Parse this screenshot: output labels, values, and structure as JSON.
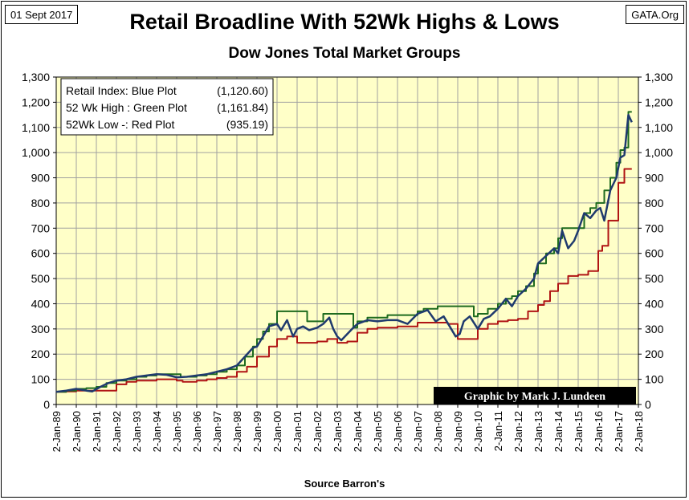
{
  "header": {
    "date": "01 Sept 2017",
    "source": "GATA.Org",
    "title": "Retail Broadline With 52Wk Highs & Lows",
    "subtitle": "Dow Jones Total Market Groups"
  },
  "credit": "Graphic by Mark J. Lundeen",
  "colors": {
    "plot_bg": "#FFFFC8",
    "blue": "#1F3A6E",
    "green": "#1E6B1E",
    "red": "#B01414",
    "grid": "#A0A0A0"
  },
  "chart_data": {
    "type": "line",
    "title": "Retail Broadline With 52Wk Highs & Lows",
    "xlabel": "Source Barron's",
    "ylabel": "",
    "ylim": [
      0,
      1300
    ],
    "yticks": [
      0,
      100,
      200,
      300,
      400,
      500,
      600,
      700,
      800,
      900,
      1000,
      1100,
      1200,
      1300
    ],
    "ytick_labels": [
      "0",
      "100",
      "200",
      "300",
      "400",
      "500",
      "600",
      "700",
      "800",
      "900",
      "1,000",
      "1,100",
      "1,200",
      "1,300"
    ],
    "x_range": [
      1989,
      2018
    ],
    "xtick_labels": [
      "2-Jan-89",
      "2-Jan-90",
      "2-Jan-91",
      "2-Jan-92",
      "2-Jan-93",
      "2-Jan-94",
      "2-Jan-95",
      "2-Jan-96",
      "2-Jan-97",
      "2-Jan-98",
      "2-Jan-99",
      "2-Jan-00",
      "2-Jan-01",
      "2-Jan-02",
      "2-Jan-03",
      "2-Jan-04",
      "2-Jan-05",
      "2-Jan-06",
      "2-Jan-07",
      "2-Jan-08",
      "2-Jan-09",
      "2-Jan-10",
      "2-Jan-11",
      "2-Jan-12",
      "2-Jan-13",
      "2-Jan-14",
      "2-Jan-15",
      "2-Jan-16",
      "2-Jan-17",
      "2-Jan-18"
    ],
    "legend": {
      "placement": "top-left",
      "entries": [
        {
          "label": "Retail Index: Blue Plot",
          "value": "(1,120.60)"
        },
        {
          "label": "52 Wk High : Green Plot",
          "value": "(1,161.84)"
        },
        {
          "label": "52Wk Low -: Red Plot",
          "value": "(935.19)"
        }
      ]
    },
    "series": [
      {
        "name": "Retail Index",
        "x": [
          1989.0,
          1989.5,
          1990.0,
          1990.5,
          1990.8,
          1991.2,
          1991.6,
          1992.0,
          1992.5,
          1993.0,
          1993.5,
          1994.0,
          1994.5,
          1995.0,
          1995.5,
          1996.0,
          1996.5,
          1997.0,
          1997.5,
          1998.0,
          1998.4,
          1998.8,
          1999.0,
          1999.3,
          1999.6,
          2000.0,
          2000.2,
          2000.5,
          2000.8,
          2001.0,
          2001.3,
          2001.6,
          2001.8,
          2002.0,
          2002.3,
          2002.6,
          2002.8,
          2003.0,
          2003.2,
          2003.5,
          2003.8,
          2004.0,
          2004.5,
          2005.0,
          2005.5,
          2006.0,
          2006.5,
          2007.0,
          2007.5,
          2007.9,
          2008.3,
          2008.6,
          2008.9,
          2009.1,
          2009.3,
          2009.6,
          2010.0,
          2010.3,
          2010.6,
          2011.0,
          2011.4,
          2011.7,
          2012.0,
          2012.4,
          2012.8,
          2013.0,
          2013.4,
          2013.8,
          2014.0,
          2014.2,
          2014.5,
          2014.8,
          2015.0,
          2015.3,
          2015.6,
          2015.9,
          2016.1,
          2016.3,
          2016.6,
          2016.9,
          2017.1,
          2017.3,
          2017.5,
          2017.67
        ],
        "values": [
          50,
          55,
          62,
          55,
          52,
          70,
          85,
          95,
          100,
          110,
          115,
          120,
          118,
          108,
          110,
          115,
          120,
          130,
          140,
          155,
          190,
          225,
          230,
          270,
          310,
          320,
          295,
          335,
          270,
          300,
          310,
          295,
          300,
          305,
          320,
          345,
          300,
          270,
          255,
          280,
          305,
          320,
          335,
          330,
          335,
          335,
          320,
          360,
          375,
          330,
          350,
          310,
          270,
          280,
          330,
          350,
          300,
          340,
          350,
          380,
          420,
          390,
          430,
          460,
          500,
          560,
          590,
          620,
          600,
          690,
          620,
          650,
          690,
          760,
          740,
          770,
          780,
          730,
          850,
          900,
          980,
          990,
          1150,
          1120.6
        ]
      },
      {
        "name": "52 Wk High",
        "x": [
          1989.0,
          1989.5,
          1990.0,
          1990.5,
          1991.0,
          1991.5,
          1992.0,
          1992.5,
          1993.0,
          1993.5,
          1994.0,
          1994.8,
          1995.2,
          1995.5,
          1996.0,
          1996.5,
          1997.0,
          1997.5,
          1998.0,
          1998.4,
          1998.8,
          1999.0,
          1999.3,
          1999.6,
          2000.0,
          2001.2,
          2001.5,
          2002.0,
          2002.3,
          2003.3,
          2003.8,
          2004.0,
          2004.5,
          2005.0,
          2005.5,
          2006.0,
          2007.0,
          2007.3,
          2007.9,
          2008.0,
          2008.6,
          2009.5,
          2009.8,
          2010.0,
          2010.5,
          2011.0,
          2011.4,
          2011.7,
          2012.0,
          2012.4,
          2012.8,
          2013.0,
          2013.4,
          2013.8,
          2014.0,
          2014.2,
          2014.5,
          2015.0,
          2015.3,
          2015.6,
          2015.9,
          2016.3,
          2016.6,
          2016.9,
          2017.1,
          2017.3,
          2017.5,
          2017.67
        ],
        "values": [
          50,
          55,
          62,
          65,
          70,
          85,
          95,
          100,
          110,
          115,
          120,
          120,
          110,
          110,
          115,
          120,
          130,
          140,
          155,
          190,
          230,
          260,
          290,
          320,
          370,
          370,
          330,
          330,
          360,
          360,
          305,
          330,
          345,
          345,
          355,
          355,
          370,
          380,
          380,
          390,
          390,
          390,
          350,
          360,
          380,
          400,
          420,
          430,
          450,
          470,
          520,
          560,
          600,
          620,
          660,
          700,
          700,
          700,
          760,
          780,
          800,
          850,
          900,
          960,
          1010,
          1020,
          1161.84,
          1161.84
        ]
      },
      {
        "name": "52 Wk Low",
        "x": [
          1989.0,
          1989.5,
          1990.0,
          1990.5,
          1991.0,
          1992.0,
          1992.5,
          1993.0,
          1994.0,
          1995.0,
          1995.3,
          1996.0,
          1996.5,
          1997.0,
          1997.5,
          1998.0,
          1998.5,
          1999.0,
          1999.6,
          2000.0,
          2000.5,
          2001.0,
          2001.5,
          2002.0,
          2002.5,
          2003.0,
          2003.5,
          2004.0,
          2004.5,
          2005.0,
          2006.0,
          2007.0,
          2008.0,
          2008.5,
          2009.0,
          2009.5,
          2010.0,
          2010.5,
          2011.0,
          2011.5,
          2012.0,
          2012.5,
          2013.0,
          2013.3,
          2013.6,
          2014.0,
          2014.5,
          2015.0,
          2015.5,
          2016.0,
          2016.2,
          2016.5,
          2016.8,
          2017.0,
          2017.3,
          2017.67
        ],
        "values": [
          50,
          52,
          55,
          55,
          55,
          80,
          90,
          95,
          100,
          95,
          90,
          95,
          100,
          105,
          110,
          130,
          150,
          190,
          230,
          260,
          270,
          245,
          245,
          250,
          260,
          245,
          250,
          285,
          300,
          305,
          310,
          325,
          325,
          320,
          260,
          260,
          300,
          320,
          330,
          335,
          340,
          370,
          395,
          410,
          450,
          480,
          510,
          515,
          530,
          610,
          630,
          730,
          730,
          880,
          935.19,
          935.19
        ]
      }
    ]
  }
}
